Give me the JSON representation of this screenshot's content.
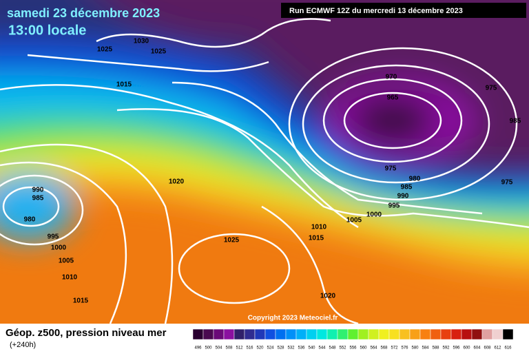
{
  "header": {
    "date": "samedi 23 décembre 2023",
    "time": "13:00 locale",
    "run": "Run ECMWF 12Z du mercredi 13 décembre 2023"
  },
  "isobars": [
    "1025",
    "1030",
    "1025",
    "1015",
    "970",
    "965",
    "975",
    "985",
    "975",
    "980",
    "985",
    "990",
    "995",
    "1000",
    "1005",
    "1010",
    "1015",
    "1020",
    "975",
    "990",
    "985",
    "980",
    "995",
    "1000",
    "1005",
    "1010",
    "1015",
    "1025",
    "1020"
  ],
  "copyright": "Copyright 2023 Meteociel.fr",
  "footer": {
    "title": "Géop. z500, pression niveau mer",
    "lead": "(+240h)"
  },
  "colorbar": {
    "labels": [
      "496",
      "500",
      "504",
      "508",
      "512",
      "516",
      "520",
      "524",
      "528",
      "532",
      "536",
      "540",
      "544",
      "548",
      "552",
      "556",
      "560",
      "564",
      "568",
      "572",
      "576",
      "580",
      "584",
      "588",
      "592",
      "596",
      "600",
      "604",
      "608",
      "612",
      "616"
    ],
    "colors": [
      "#2a0030",
      "#4a0a50",
      "#6a0a78",
      "#8a10a0",
      "#30206a",
      "#302c90",
      "#2038b8",
      "#1050e0",
      "#0070f0",
      "#0090f8",
      "#00b0f8",
      "#00d0f0",
      "#00e8e0",
      "#10f0b0",
      "#30f070",
      "#60f030",
      "#a0f020",
      "#d0f020",
      "#f0f020",
      "#f8e020",
      "#f8c020",
      "#f8a018",
      "#f88010",
      "#f06010",
      "#e84010",
      "#d82010",
      "#b81010",
      "#901010",
      "#e0a0a0",
      "#f0d0d0",
      "#000000"
    ]
  }
}
